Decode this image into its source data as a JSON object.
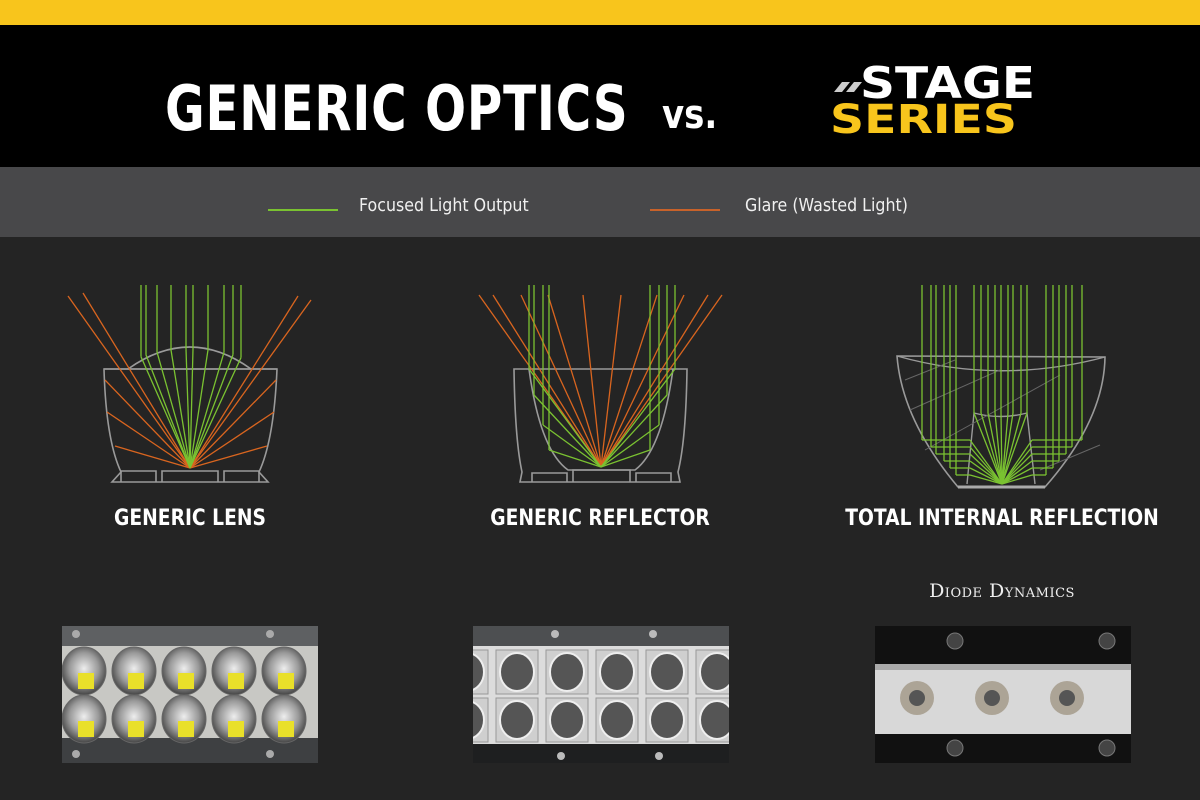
{
  "header": {
    "title": "GENERIC OPTICS",
    "vs": "vs.",
    "logo_line1": "STAGE",
    "logo_line2": "SERIES"
  },
  "legend": {
    "items": [
      {
        "label": "Focused Light Output",
        "color": "#7ac231"
      },
      {
        "label": "Glare (Wasted Light)",
        "color": "#d9651f"
      }
    ]
  },
  "diagrams": [
    {
      "label": "GENERIC LENS"
    },
    {
      "label": "GENERIC REFLECTOR"
    },
    {
      "label": "TOTAL INTERNAL REFLECTION"
    }
  ],
  "brand": "Diode Dynamics",
  "colors": {
    "accent": "#f8c51c",
    "focused": "#7ac231",
    "glare": "#d9651f",
    "outline": "#9a9a9a"
  }
}
